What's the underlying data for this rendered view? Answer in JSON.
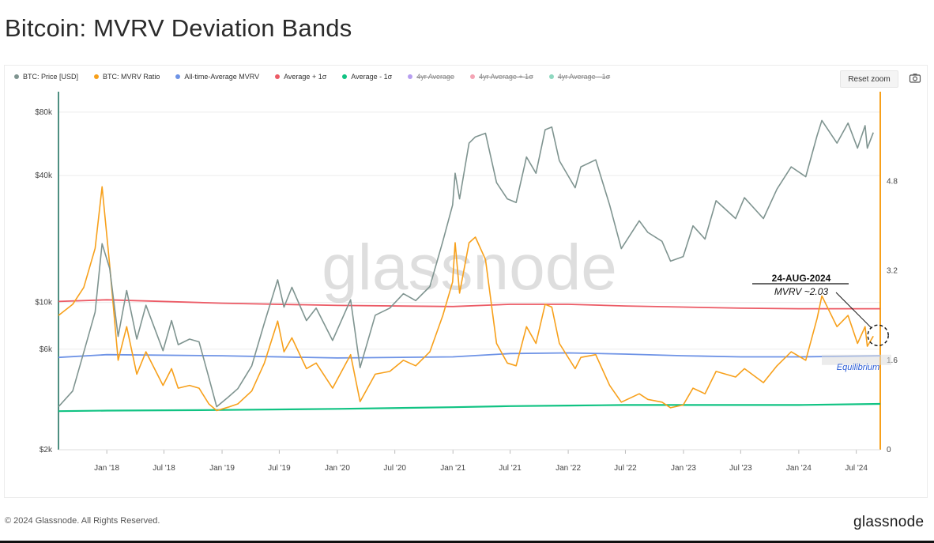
{
  "page": {
    "title": "Bitcoin: MVRV Deviation Bands",
    "copyright": "© 2024 Glassnode. All Rights Reserved.",
    "brand": "glassnode",
    "watermark": "glassnode"
  },
  "toolbar": {
    "reset_zoom_label": "Reset zoom",
    "camera_icon": "camera-icon"
  },
  "legend": [
    {
      "label": "BTC: Price [USD]",
      "color": "#7f9490",
      "hidden": false
    },
    {
      "label": "BTC: MVRV Ratio",
      "color": "#f7a01b",
      "hidden": false
    },
    {
      "label": "All-time-Average MVRV",
      "color": "#6e93e6",
      "hidden": false
    },
    {
      "label": "Average + 1σ",
      "color": "#ec5b66",
      "hidden": false
    },
    {
      "label": "Average - 1σ",
      "color": "#11c383",
      "hidden": false
    },
    {
      "label": "4yr Average",
      "color": "#b79ef0",
      "hidden": true
    },
    {
      "label": "4yr Average + 1σ",
      "color": "#f4a4b4",
      "hidden": true
    },
    {
      "label": "4yr Average - 1σ",
      "color": "#8fd8c0",
      "hidden": true
    }
  ],
  "chart_data": {
    "type": "line",
    "title": "Bitcoin: MVRV Deviation Bands",
    "x_ticks": [
      "Jan '18",
      "Jul '18",
      "Jan '19",
      "Jul '19",
      "Jan '20",
      "Jul '20",
      "Jan '21",
      "Jul '21",
      "Jan '22",
      "Jul '22",
      "Jan '23",
      "Jul '23",
      "Jan '24",
      "Jul '24"
    ],
    "x_tick_dates": [
      "2018-01-01",
      "2018-07-01",
      "2019-01-01",
      "2019-07-01",
      "2020-01-01",
      "2020-07-01",
      "2021-01-01",
      "2021-07-01",
      "2022-01-01",
      "2022-07-01",
      "2023-01-01",
      "2023-07-01",
      "2024-01-01",
      "2024-07-01"
    ],
    "x_range": [
      "2017-08-01",
      "2024-09-15"
    ],
    "y_left": {
      "scale": "log",
      "ticks": [
        2000,
        6000,
        10000,
        40000,
        80000
      ],
      "tick_labels": [
        "$2k",
        "$6k",
        "$10k",
        "$40k",
        "$80k"
      ],
      "range": [
        2000,
        100000
      ]
    },
    "y_right": {
      "scale": "linear",
      "ticks": [
        0,
        1.6,
        3.2,
        4.8
      ],
      "tick_labels": [
        "0",
        "1.6",
        "3.2",
        "4.8"
      ],
      "range": [
        0,
        6.4
      ]
    },
    "grid": true,
    "legend_position": "top-left",
    "series": [
      {
        "name": "BTC: Price [USD]",
        "axis": "left",
        "color": "#7f9490",
        "points": [
          [
            "2017-08-01",
            3200
          ],
          [
            "2017-09-15",
            3800
          ],
          [
            "2017-10-20",
            5800
          ],
          [
            "2017-11-25",
            9000
          ],
          [
            "2017-12-17",
            19000
          ],
          [
            "2018-01-10",
            14500
          ],
          [
            "2018-02-06",
            6900
          ],
          [
            "2018-03-05",
            11400
          ],
          [
            "2018-04-06",
            6700
          ],
          [
            "2018-05-05",
            9700
          ],
          [
            "2018-06-28",
            5900
          ],
          [
            "2018-07-25",
            8200
          ],
          [
            "2018-08-15",
            6300
          ],
          [
            "2018-09-20",
            6700
          ],
          [
            "2018-10-20",
            6500
          ],
          [
            "2018-11-20",
            4400
          ],
          [
            "2018-12-15",
            3200
          ],
          [
            "2019-01-20",
            3550
          ],
          [
            "2019-02-20",
            3900
          ],
          [
            "2019-04-05",
            5000
          ],
          [
            "2019-05-15",
            8000
          ],
          [
            "2019-06-26",
            12800
          ],
          [
            "2019-07-16",
            9500
          ],
          [
            "2019-08-10",
            11800
          ],
          [
            "2019-09-25",
            8200
          ],
          [
            "2019-10-26",
            9400
          ],
          [
            "2019-12-17",
            6600
          ],
          [
            "2020-02-12",
            10300
          ],
          [
            "2020-03-13",
            4900
          ],
          [
            "2020-04-30",
            8700
          ],
          [
            "2020-06-15",
            9400
          ],
          [
            "2020-07-28",
            11000
          ],
          [
            "2020-09-05",
            10200
          ],
          [
            "2020-10-20",
            11900
          ],
          [
            "2020-11-30",
            19500
          ],
          [
            "2020-12-31",
            29000
          ],
          [
            "2021-01-08",
            41000
          ],
          [
            "2021-01-22",
            31000
          ],
          [
            "2021-02-21",
            57000
          ],
          [
            "2021-03-13",
            61000
          ],
          [
            "2021-04-14",
            63500
          ],
          [
            "2021-05-19",
            37000
          ],
          [
            "2021-06-22",
            31000
          ],
          [
            "2021-07-20",
            29800
          ],
          [
            "2021-08-22",
            49000
          ],
          [
            "2021-09-21",
            41000
          ],
          [
            "2021-10-20",
            66000
          ],
          [
            "2021-11-10",
            68000
          ],
          [
            "2021-12-04",
            47000
          ],
          [
            "2022-01-23",
            35000
          ],
          [
            "2022-02-10",
            44000
          ],
          [
            "2022-03-29",
            47500
          ],
          [
            "2022-05-12",
            29000
          ],
          [
            "2022-06-18",
            18000
          ],
          [
            "2022-08-14",
            24400
          ],
          [
            "2022-09-10",
            21500
          ],
          [
            "2022-10-25",
            19500
          ],
          [
            "2022-11-21",
            15700
          ],
          [
            "2022-12-31",
            16500
          ],
          [
            "2023-01-31",
            23100
          ],
          [
            "2023-03-10",
            20000
          ],
          [
            "2023-04-14",
            30400
          ],
          [
            "2023-06-15",
            25000
          ],
          [
            "2023-07-13",
            31400
          ],
          [
            "2023-09-11",
            25000
          ],
          [
            "2023-10-24",
            34500
          ],
          [
            "2023-12-08",
            44000
          ],
          [
            "2024-01-23",
            39500
          ],
          [
            "2024-02-28",
            62000
          ],
          [
            "2024-03-14",
            73000
          ],
          [
            "2024-05-01",
            57000
          ],
          [
            "2024-06-05",
            71000
          ],
          [
            "2024-07-05",
            54000
          ],
          [
            "2024-07-29",
            69000
          ],
          [
            "2024-08-05",
            54000
          ],
          [
            "2024-08-24",
            64000
          ]
        ]
      },
      {
        "name": "BTC: MVRV Ratio",
        "axis": "right",
        "color": "#f7a01b",
        "points": [
          [
            "2017-08-01",
            2.4
          ],
          [
            "2017-09-15",
            2.6
          ],
          [
            "2017-10-20",
            2.9
          ],
          [
            "2017-11-25",
            3.6
          ],
          [
            "2017-12-17",
            4.7
          ],
          [
            "2018-01-10",
            3.3
          ],
          [
            "2018-02-06",
            1.6
          ],
          [
            "2018-03-05",
            2.2
          ],
          [
            "2018-04-06",
            1.35
          ],
          [
            "2018-05-05",
            1.75
          ],
          [
            "2018-06-28",
            1.15
          ],
          [
            "2018-07-25",
            1.45
          ],
          [
            "2018-08-15",
            1.1
          ],
          [
            "2018-09-20",
            1.15
          ],
          [
            "2018-10-20",
            1.1
          ],
          [
            "2018-11-20",
            0.82
          ],
          [
            "2018-12-15",
            0.7
          ],
          [
            "2019-01-20",
            0.76
          ],
          [
            "2019-02-20",
            0.82
          ],
          [
            "2019-04-05",
            1.05
          ],
          [
            "2019-05-15",
            1.55
          ],
          [
            "2019-06-26",
            2.3
          ],
          [
            "2019-07-16",
            1.75
          ],
          [
            "2019-08-10",
            2.0
          ],
          [
            "2019-09-25",
            1.45
          ],
          [
            "2019-10-26",
            1.55
          ],
          [
            "2019-12-17",
            1.1
          ],
          [
            "2020-02-12",
            1.7
          ],
          [
            "2020-03-13",
            0.86
          ],
          [
            "2020-04-30",
            1.35
          ],
          [
            "2020-06-15",
            1.4
          ],
          [
            "2020-07-28",
            1.6
          ],
          [
            "2020-09-05",
            1.5
          ],
          [
            "2020-10-20",
            1.75
          ],
          [
            "2020-11-30",
            2.4
          ],
          [
            "2020-12-31",
            3.0
          ],
          [
            "2021-01-08",
            3.7
          ],
          [
            "2021-01-22",
            2.8
          ],
          [
            "2021-02-21",
            3.7
          ],
          [
            "2021-03-13",
            3.8
          ],
          [
            "2021-04-14",
            3.4
          ],
          [
            "2021-05-19",
            1.9
          ],
          [
            "2021-06-22",
            1.55
          ],
          [
            "2021-07-20",
            1.5
          ],
          [
            "2021-08-22",
            2.2
          ],
          [
            "2021-09-21",
            1.9
          ],
          [
            "2021-10-20",
            2.6
          ],
          [
            "2021-11-10",
            2.55
          ],
          [
            "2021-12-04",
            1.9
          ],
          [
            "2022-01-23",
            1.45
          ],
          [
            "2022-02-10",
            1.65
          ],
          [
            "2022-03-29",
            1.7
          ],
          [
            "2022-05-12",
            1.15
          ],
          [
            "2022-06-18",
            0.85
          ],
          [
            "2022-08-14",
            1.0
          ],
          [
            "2022-09-10",
            0.9
          ],
          [
            "2022-10-25",
            0.85
          ],
          [
            "2022-11-21",
            0.75
          ],
          [
            "2022-12-31",
            0.8
          ],
          [
            "2023-01-31",
            1.1
          ],
          [
            "2023-03-10",
            1.0
          ],
          [
            "2023-04-14",
            1.4
          ],
          [
            "2023-06-15",
            1.3
          ],
          [
            "2023-07-13",
            1.45
          ],
          [
            "2023-09-11",
            1.2
          ],
          [
            "2023-10-24",
            1.5
          ],
          [
            "2023-12-08",
            1.75
          ],
          [
            "2024-01-23",
            1.6
          ],
          [
            "2024-02-28",
            2.35
          ],
          [
            "2024-03-14",
            2.75
          ],
          [
            "2024-05-01",
            2.2
          ],
          [
            "2024-06-05",
            2.4
          ],
          [
            "2024-07-05",
            1.9
          ],
          [
            "2024-07-29",
            2.2
          ],
          [
            "2024-08-05",
            1.85
          ],
          [
            "2024-08-24",
            2.03
          ]
        ]
      },
      {
        "name": "All-time-Average MVRV",
        "axis": "right",
        "color": "#6e93e6",
        "points": [
          [
            "2017-08-01",
            1.65
          ],
          [
            "2018-01-01",
            1.7
          ],
          [
            "2019-01-01",
            1.68
          ],
          [
            "2020-01-01",
            1.64
          ],
          [
            "2021-01-01",
            1.66
          ],
          [
            "2021-07-01",
            1.72
          ],
          [
            "2022-01-01",
            1.73
          ],
          [
            "2022-07-01",
            1.71
          ],
          [
            "2023-01-01",
            1.68
          ],
          [
            "2023-07-01",
            1.66
          ],
          [
            "2024-01-01",
            1.66
          ],
          [
            "2024-09-15",
            1.68
          ]
        ]
      },
      {
        "name": "Average + 1σ",
        "axis": "right",
        "color": "#ec5b66",
        "points": [
          [
            "2017-08-01",
            2.65
          ],
          [
            "2018-01-01",
            2.68
          ],
          [
            "2019-01-01",
            2.62
          ],
          [
            "2020-01-01",
            2.58
          ],
          [
            "2021-01-01",
            2.56
          ],
          [
            "2021-07-01",
            2.6
          ],
          [
            "2022-01-01",
            2.6
          ],
          [
            "2022-07-01",
            2.57
          ],
          [
            "2023-01-01",
            2.55
          ],
          [
            "2023-07-01",
            2.53
          ],
          [
            "2024-01-01",
            2.52
          ],
          [
            "2024-09-15",
            2.52
          ]
        ]
      },
      {
        "name": "Average - 1σ",
        "axis": "right",
        "color": "#11c383",
        "points": [
          [
            "2017-08-01",
            0.69
          ],
          [
            "2018-01-01",
            0.7
          ],
          [
            "2019-01-01",
            0.71
          ],
          [
            "2020-01-01",
            0.73
          ],
          [
            "2021-01-01",
            0.76
          ],
          [
            "2021-07-01",
            0.78
          ],
          [
            "2022-01-01",
            0.79
          ],
          [
            "2022-07-01",
            0.8
          ],
          [
            "2023-01-01",
            0.8
          ],
          [
            "2023-07-01",
            0.8
          ],
          [
            "2024-01-01",
            0.8
          ],
          [
            "2024-09-15",
            0.82
          ]
        ]
      }
    ],
    "annotations": [
      {
        "text": "24-AUG-2024",
        "date": "2024-08-24"
      },
      {
        "text": "MVRV ~2.03",
        "value": 2.03
      },
      {
        "text": "Equilibrium",
        "value": 1.6
      }
    ]
  }
}
